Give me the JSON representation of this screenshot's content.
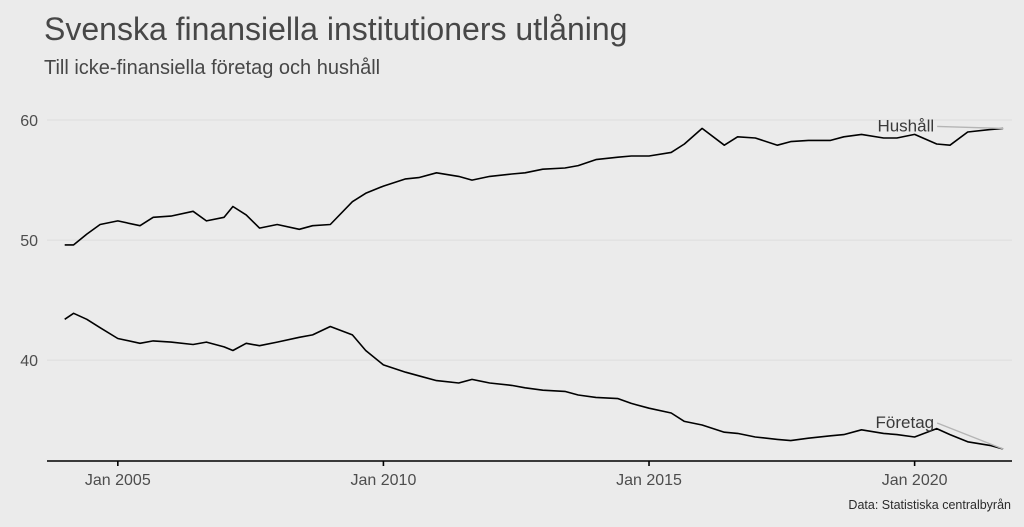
{
  "chart_data": {
    "type": "line",
    "title": "Svenska finansiella institutioners utlåning",
    "subtitle": "Till icke-finansiella företag och hushåll",
    "caption": "Data: Statistiska centralbyrån",
    "xlabel": "",
    "ylabel": "",
    "x_range": [
      "2003-09",
      "2021-11"
    ],
    "ylim": [
      31.6,
      63.0
    ],
    "y_ticks": [
      40,
      50,
      60
    ],
    "y_tick_labels": [
      "40",
      "50",
      "60"
    ],
    "x_ticks": [
      "2005-01",
      "2010-01",
      "2015-01",
      "2020-01"
    ],
    "x_tick_labels": [
      "Jan 2005",
      "Jan 2010",
      "Jan 2015",
      "Jan 2020"
    ],
    "grid": "horizontal",
    "legend": "none",
    "series": [
      {
        "name": "Hushåll",
        "label_position": "end-upper-left",
        "points": [
          [
            "2004-01",
            49.6
          ],
          [
            "2004-03",
            49.6
          ],
          [
            "2004-06",
            50.5
          ],
          [
            "2004-09",
            51.3
          ],
          [
            "2005-01",
            51.6
          ],
          [
            "2005-06",
            51.2
          ],
          [
            "2005-09",
            51.9
          ],
          [
            "2006-01",
            52.0
          ],
          [
            "2006-06",
            52.4
          ],
          [
            "2006-09",
            51.6
          ],
          [
            "2007-01",
            51.9
          ],
          [
            "2007-03",
            52.8
          ],
          [
            "2007-06",
            52.1
          ],
          [
            "2007-09",
            51.0
          ],
          [
            "2008-01",
            51.3
          ],
          [
            "2008-06",
            50.9
          ],
          [
            "2008-09",
            51.2
          ],
          [
            "2009-01",
            51.3
          ],
          [
            "2009-06",
            53.2
          ],
          [
            "2009-09",
            53.9
          ],
          [
            "2010-01",
            54.5
          ],
          [
            "2010-06",
            55.1
          ],
          [
            "2010-09",
            55.2
          ],
          [
            "2011-01",
            55.6
          ],
          [
            "2011-06",
            55.3
          ],
          [
            "2011-09",
            55.0
          ],
          [
            "2012-01",
            55.3
          ],
          [
            "2012-06",
            55.5
          ],
          [
            "2012-09",
            55.6
          ],
          [
            "2013-01",
            55.9
          ],
          [
            "2013-06",
            56.0
          ],
          [
            "2013-09",
            56.2
          ],
          [
            "2014-01",
            56.7
          ],
          [
            "2014-06",
            56.9
          ],
          [
            "2014-09",
            57.0
          ],
          [
            "2015-01",
            57.0
          ],
          [
            "2015-06",
            57.3
          ],
          [
            "2015-09",
            58.0
          ],
          [
            "2016-01",
            59.3
          ],
          [
            "2016-06",
            57.9
          ],
          [
            "2016-09",
            58.6
          ],
          [
            "2017-01",
            58.5
          ],
          [
            "2017-06",
            57.9
          ],
          [
            "2017-09",
            58.2
          ],
          [
            "2018-01",
            58.3
          ],
          [
            "2018-06",
            58.3
          ],
          [
            "2018-09",
            58.6
          ],
          [
            "2019-01",
            58.8
          ],
          [
            "2019-06",
            58.5
          ],
          [
            "2019-09",
            58.5
          ],
          [
            "2020-01",
            58.8
          ],
          [
            "2020-06",
            58.0
          ],
          [
            "2020-09",
            57.9
          ],
          [
            "2021-01",
            59.0
          ],
          [
            "2021-06",
            59.2
          ],
          [
            "2021-09",
            59.3
          ]
        ]
      },
      {
        "name": "Företag",
        "label_position": "end-upper-left",
        "points": [
          [
            "2004-01",
            43.4
          ],
          [
            "2004-03",
            43.9
          ],
          [
            "2004-06",
            43.4
          ],
          [
            "2004-09",
            42.7
          ],
          [
            "2005-01",
            41.8
          ],
          [
            "2005-06",
            41.4
          ],
          [
            "2005-09",
            41.6
          ],
          [
            "2006-01",
            41.5
          ],
          [
            "2006-06",
            41.3
          ],
          [
            "2006-09",
            41.5
          ],
          [
            "2007-01",
            41.1
          ],
          [
            "2007-03",
            40.8
          ],
          [
            "2007-06",
            41.4
          ],
          [
            "2007-09",
            41.2
          ],
          [
            "2008-01",
            41.5
          ],
          [
            "2008-06",
            41.9
          ],
          [
            "2008-09",
            42.1
          ],
          [
            "2009-01",
            42.8
          ],
          [
            "2009-06",
            42.1
          ],
          [
            "2009-09",
            40.8
          ],
          [
            "2010-01",
            39.6
          ],
          [
            "2010-06",
            39.0
          ],
          [
            "2010-09",
            38.7
          ],
          [
            "2011-01",
            38.3
          ],
          [
            "2011-06",
            38.1
          ],
          [
            "2011-09",
            38.4
          ],
          [
            "2012-01",
            38.1
          ],
          [
            "2012-06",
            37.9
          ],
          [
            "2012-09",
            37.7
          ],
          [
            "2013-01",
            37.5
          ],
          [
            "2013-06",
            37.4
          ],
          [
            "2013-09",
            37.1
          ],
          [
            "2014-01",
            36.9
          ],
          [
            "2014-06",
            36.8
          ],
          [
            "2014-09",
            36.4
          ],
          [
            "2015-01",
            36.0
          ],
          [
            "2015-06",
            35.6
          ],
          [
            "2015-09",
            34.9
          ],
          [
            "2016-01",
            34.6
          ],
          [
            "2016-06",
            34.0
          ],
          [
            "2016-09",
            33.9
          ],
          [
            "2017-01",
            33.6
          ],
          [
            "2017-06",
            33.4
          ],
          [
            "2017-09",
            33.3
          ],
          [
            "2018-01",
            33.5
          ],
          [
            "2018-06",
            33.7
          ],
          [
            "2018-09",
            33.8
          ],
          [
            "2019-01",
            34.2
          ],
          [
            "2019-06",
            33.9
          ],
          [
            "2019-09",
            33.8
          ],
          [
            "2020-01",
            33.6
          ],
          [
            "2020-06",
            34.3
          ],
          [
            "2020-09",
            33.8
          ],
          [
            "2021-01",
            33.2
          ],
          [
            "2021-06",
            32.9
          ],
          [
            "2021-09",
            32.6
          ]
        ]
      }
    ]
  }
}
